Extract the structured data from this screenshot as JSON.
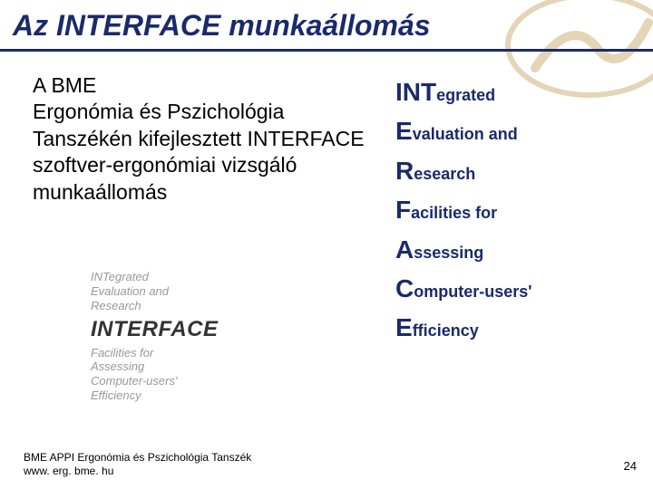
{
  "title": "Az INTERFACE munkaállomás",
  "description": "A BME\nErgonómia és Pszichológia Tanszékén kifejlesztett INTERFACE szoftver-ergonómiai vizsgáló munkaállomás",
  "acronym": [
    {
      "big": "INT",
      "rest": "egrated"
    },
    {
      "big": "E",
      "rest": "valuation and"
    },
    {
      "big": "R",
      "rest": "esearch"
    },
    {
      "big": "F",
      "rest": "acilities for"
    },
    {
      "big": "A",
      "rest": "ssessing"
    },
    {
      "big": "C",
      "rest": "omputer-users'"
    },
    {
      "big": "E",
      "rest": "fficiency"
    }
  ],
  "logo_block": {
    "top_lines": "INTegrated\nEvaluation and\nResearch",
    "word": "INTERFACE",
    "bottom_lines": "Facilities for\nAssessing\nComputer-users'\nEfficiency"
  },
  "footer": {
    "line1": "BME APPI Ergonómia és Pszichológia  Tanszék",
    "line2": "www. erg. bme. hu"
  },
  "page_number": "24",
  "colors": {
    "title": "#1a2a6c",
    "underline": "#1a2a6c",
    "acronym": "#1a2a6c",
    "logo_stroke": "#b08830"
  }
}
